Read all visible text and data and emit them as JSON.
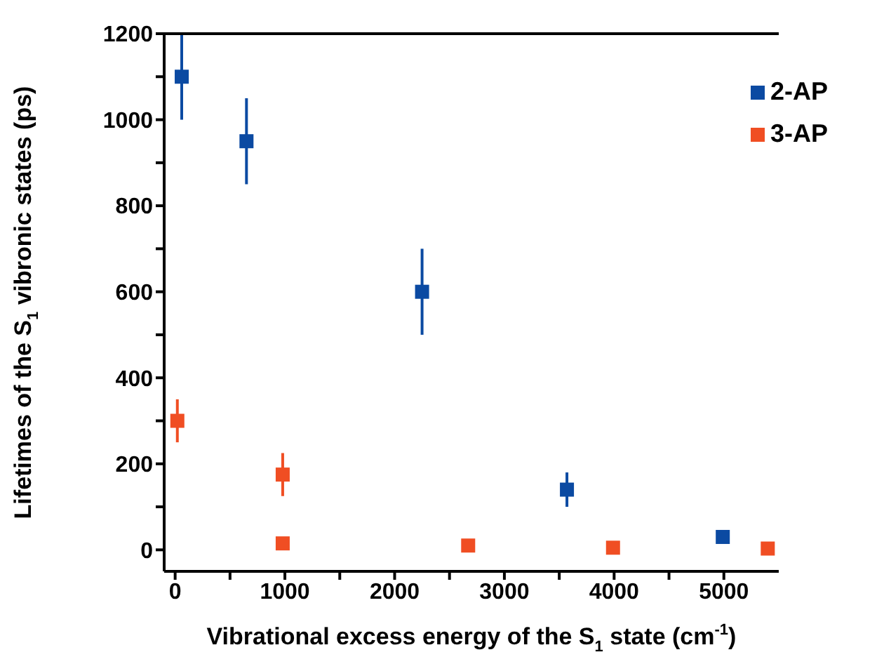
{
  "chart_data": {
    "type": "scatter",
    "xlabel": "Vibrational excess energy of the S$_{1}$ state (cm$^{-1}$)",
    "ylabel": "Lifetimes of the S$_{1}$ vibronic states (ps)",
    "xlim": [
      -100,
      5500
    ],
    "ylim": [
      -50,
      1200
    ],
    "xticks": [
      0,
      {
        "value": 500,
        "label": null
      },
      1000,
      {
        "value": 1500,
        "label": null
      },
      2000,
      {
        "value": 2500,
        "label": null
      },
      3000,
      {
        "value": 3500,
        "label": null
      },
      4000,
      {
        "value": 4500,
        "label": null
      },
      5000
    ],
    "yticks": [
      0,
      {
        "value": 100,
        "label": null
      },
      200,
      {
        "value": 300,
        "label": null
      },
      400,
      {
        "value": 500,
        "label": null
      },
      600,
      {
        "value": 700,
        "label": null
      },
      800,
      {
        "value": 900,
        "label": null
      },
      1000,
      {
        "value": 1100,
        "label": null
      },
      1200
    ],
    "marker": "square",
    "grid": false,
    "legend": "top right",
    "series": [
      {
        "name": "2-AP",
        "color": "#0b4aa2",
        "x": [
          60,
          650,
          2250,
          3570,
          4990
        ],
        "values": [
          1100,
          950,
          600,
          140,
          30
        ],
        "errors": [
          100,
          100,
          100,
          40,
          null
        ]
      },
      {
        "name": "3-AP",
        "color": "#f04e23",
        "x": [
          20,
          980,
          980,
          2670,
          3990,
          5400
        ],
        "values": [
          300,
          175,
          15,
          10,
          5,
          3
        ],
        "errors": [
          50,
          50,
          null,
          null,
          null,
          null
        ]
      }
    ]
  }
}
